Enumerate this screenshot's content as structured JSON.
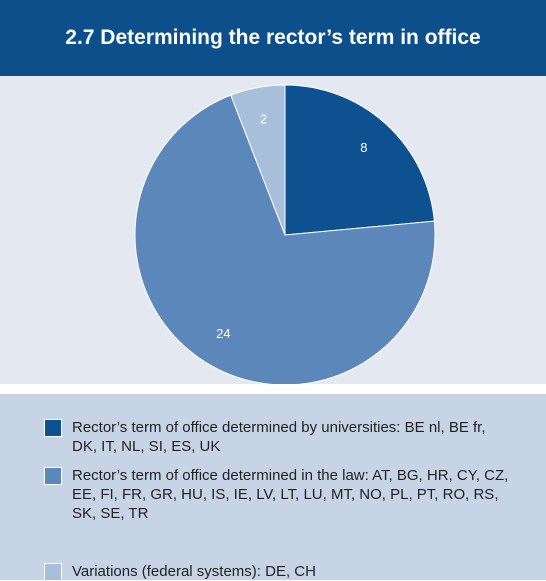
{
  "chart_data": {
    "type": "pie",
    "title": "2.7 Determining the rector’s term in office",
    "categories": [
      "Rector’s term of office determined by universities: BE nl, BE fr, DK, IT, NL, SI, ES, UK",
      "Rector’s term of office determined in the law: AT, BG, HR, CY, CZ, EE, FI, FR, GR, HU, IS, IE, LV, LT, LU, MT, NO, PL, PT, RO, RS, SK, SE, TR",
      "Variations (federal systems): DE, CH"
    ],
    "values": [
      8,
      24,
      2
    ],
    "colors": [
      "#0d5190",
      "#5b87bb",
      "#a8bfdc"
    ]
  }
}
